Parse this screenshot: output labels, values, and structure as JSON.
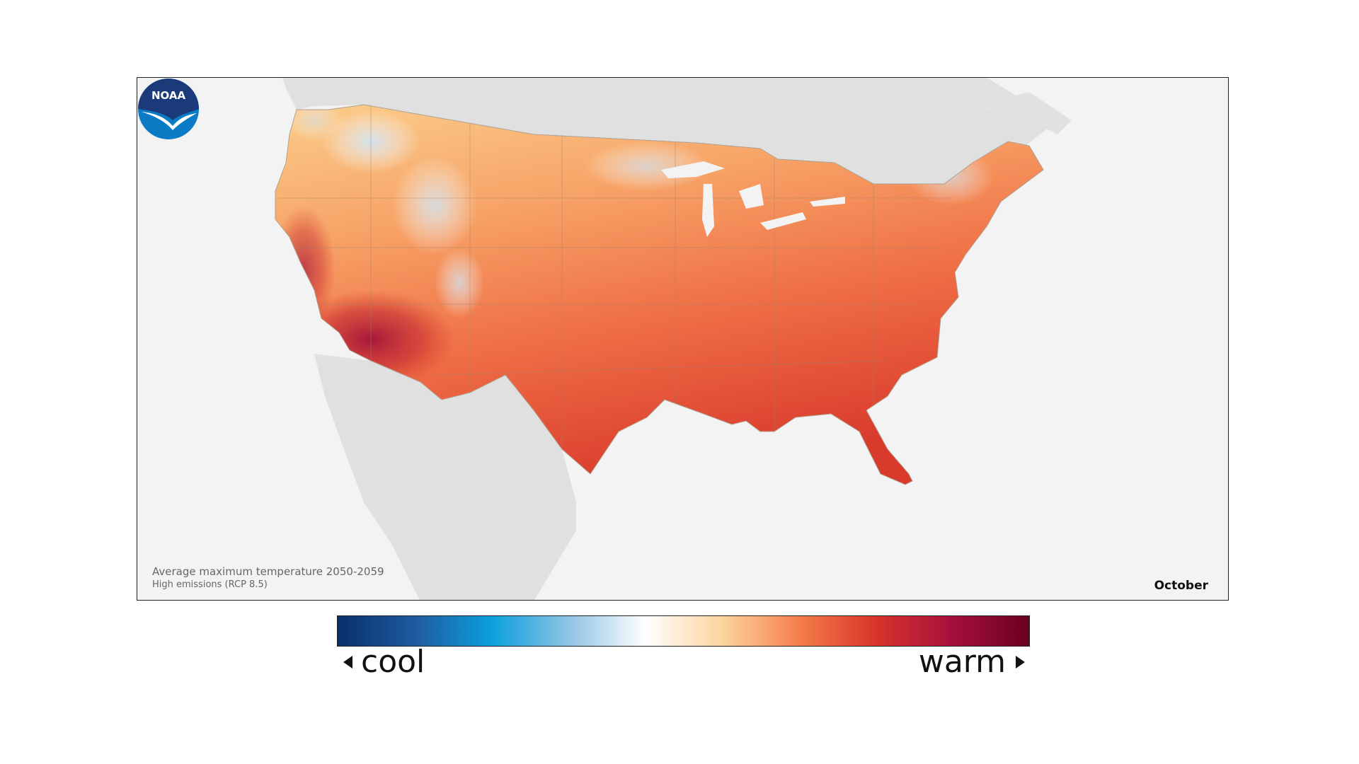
{
  "map": {
    "caption_line1": "Average maximum temperature 2050-2059",
    "caption_line2": "High emissions (RCP 8.5)",
    "month": "October",
    "logo_text": "NOAA"
  },
  "legend": {
    "low_label": "cool",
    "high_label": "warm",
    "colors": [
      "#08306b",
      "#1f5aa0",
      "#0b9fdc",
      "#8fc3e4",
      "#ffffff",
      "#fdd49e",
      "#f47d4a",
      "#d7342a",
      "#a50f3e",
      "#67001f"
    ]
  }
}
